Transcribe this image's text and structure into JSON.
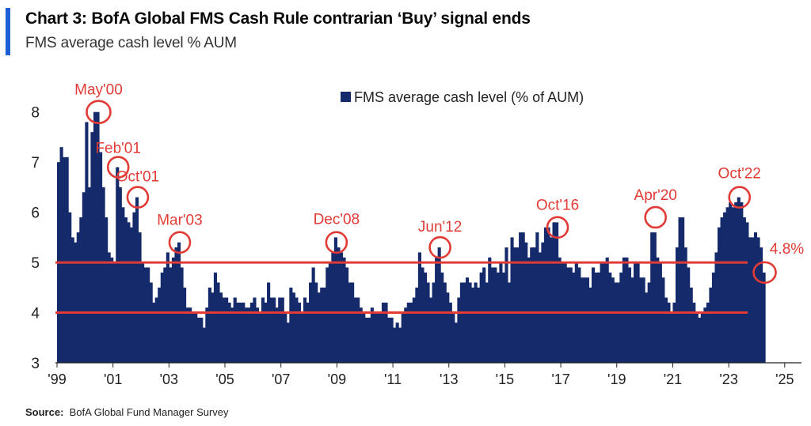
{
  "header": {
    "title": "Chart 3: BofA Global FMS Cash Rule contrarian ‘Buy’ signal ends",
    "subtitle": "FMS average cash level % AUM"
  },
  "footer": {
    "source_label": "Source:",
    "source_text": "BofA Global Fund Manager Survey"
  },
  "colors": {
    "bar": "#152a6b",
    "threshold": "#e23b35",
    "annotation": "#e23b35",
    "accent": "#1c5fd6"
  },
  "chart_data": {
    "type": "bar",
    "title": "",
    "xlabel": "",
    "ylabel": "",
    "ylim": [
      3,
      8.5
    ],
    "yticks": [
      3,
      4,
      5,
      6,
      7,
      8
    ],
    "xlim": [
      1999.0,
      2025.6
    ],
    "xticks": [
      {
        "value": 1999,
        "label": "'99"
      },
      {
        "value": 2001,
        "label": "'01"
      },
      {
        "value": 2003,
        "label": "'03"
      },
      {
        "value": 2005,
        "label": "'05"
      },
      {
        "value": 2007,
        "label": "'07"
      },
      {
        "value": 2009,
        "label": "'09"
      },
      {
        "value": 2011,
        "label": "'11"
      },
      {
        "value": 2013,
        "label": "'13"
      },
      {
        "value": 2015,
        "label": "'15"
      },
      {
        "value": 2017,
        "label": "'17"
      },
      {
        "value": 2019,
        "label": "'19"
      },
      {
        "value": 2021,
        "label": "'21"
      },
      {
        "value": 2023,
        "label": "'23"
      },
      {
        "value": 2025,
        "label": "'25"
      }
    ],
    "legend": {
      "label": "FMS average cash level (% of AUM)",
      "position": "top-center"
    },
    "series": [
      {
        "name": "FMS average cash level (% of AUM)",
        "points": [
          [
            1999.0,
            7.0
          ],
          [
            1999.1,
            7.3
          ],
          [
            1999.2,
            7.1
          ],
          [
            1999.3,
            7.1
          ],
          [
            1999.4,
            6.0
          ],
          [
            1999.5,
            5.5
          ],
          [
            1999.6,
            5.4
          ],
          [
            1999.7,
            5.6
          ],
          [
            1999.8,
            5.9
          ],
          [
            1999.9,
            6.4
          ],
          [
            2000.0,
            7.8
          ],
          [
            2000.1,
            6.5
          ],
          [
            2000.2,
            7.6
          ],
          [
            2000.3,
            8.0
          ],
          [
            2000.4,
            8.0
          ],
          [
            2000.5,
            7.2
          ],
          [
            2000.6,
            6.5
          ],
          [
            2000.7,
            5.9
          ],
          [
            2000.8,
            5.2
          ],
          [
            2000.9,
            5.1
          ],
          [
            2001.0,
            5.0
          ],
          [
            2001.1,
            6.9
          ],
          [
            2001.2,
            6.5
          ],
          [
            2001.3,
            6.1
          ],
          [
            2001.4,
            5.9
          ],
          [
            2001.5,
            5.8
          ],
          [
            2001.6,
            5.7
          ],
          [
            2001.7,
            6.0
          ],
          [
            2001.8,
            6.3
          ],
          [
            2001.9,
            5.6
          ],
          [
            2002.0,
            5.0
          ],
          [
            2002.1,
            4.9
          ],
          [
            2002.2,
            4.9
          ],
          [
            2002.3,
            4.6
          ],
          [
            2002.4,
            4.2
          ],
          [
            2002.5,
            4.3
          ],
          [
            2002.6,
            4.5
          ],
          [
            2002.7,
            4.8
          ],
          [
            2002.8,
            4.9
          ],
          [
            2002.9,
            5.2
          ],
          [
            2003.0,
            4.9
          ],
          [
            2003.1,
            5.1
          ],
          [
            2003.2,
            5.3
          ],
          [
            2003.3,
            5.4
          ],
          [
            2003.4,
            4.9
          ],
          [
            2003.5,
            4.5
          ],
          [
            2003.6,
            4.1
          ],
          [
            2003.7,
            4.1
          ],
          [
            2003.8,
            4.0
          ],
          [
            2003.9,
            4.0
          ],
          [
            2004.0,
            3.9
          ],
          [
            2004.1,
            3.9
          ],
          [
            2004.2,
            3.7
          ],
          [
            2004.3,
            4.1
          ],
          [
            2004.4,
            4.5
          ],
          [
            2004.5,
            4.4
          ],
          [
            2004.6,
            4.8
          ],
          [
            2004.7,
            4.6
          ],
          [
            2004.8,
            4.4
          ],
          [
            2004.9,
            4.3
          ],
          [
            2005.0,
            4.3
          ],
          [
            2005.1,
            4.2
          ],
          [
            2005.2,
            4.1
          ],
          [
            2005.3,
            4.3
          ],
          [
            2005.4,
            4.2
          ],
          [
            2005.5,
            4.2
          ],
          [
            2005.6,
            4.2
          ],
          [
            2005.7,
            4.1
          ],
          [
            2005.8,
            4.1
          ],
          [
            2005.9,
            4.2
          ],
          [
            2006.0,
            4.3
          ],
          [
            2006.1,
            4.1
          ],
          [
            2006.2,
            4.0
          ],
          [
            2006.3,
            4.3
          ],
          [
            2006.4,
            4.2
          ],
          [
            2006.5,
            4.6
          ],
          [
            2006.6,
            4.3
          ],
          [
            2006.7,
            4.3
          ],
          [
            2006.8,
            4.1
          ],
          [
            2006.9,
            4.3
          ],
          [
            2007.0,
            4.3
          ],
          [
            2007.1,
            4.0
          ],
          [
            2007.2,
            3.8
          ],
          [
            2007.3,
            4.5
          ],
          [
            2007.4,
            4.4
          ],
          [
            2007.5,
            4.3
          ],
          [
            2007.6,
            4.2
          ],
          [
            2007.7,
            4.0
          ],
          [
            2007.8,
            4.3
          ],
          [
            2007.9,
            4.2
          ],
          [
            2008.0,
            4.6
          ],
          [
            2008.1,
            4.9
          ],
          [
            2008.2,
            4.6
          ],
          [
            2008.3,
            4.4
          ],
          [
            2008.4,
            4.5
          ],
          [
            2008.5,
            4.5
          ],
          [
            2008.6,
            4.9
          ],
          [
            2008.7,
            5.0
          ],
          [
            2008.8,
            5.2
          ],
          [
            2008.9,
            5.5
          ],
          [
            2009.0,
            5.3
          ],
          [
            2009.1,
            5.2
          ],
          [
            2009.2,
            5.1
          ],
          [
            2009.3,
            4.9
          ],
          [
            2009.4,
            4.6
          ],
          [
            2009.5,
            4.6
          ],
          [
            2009.6,
            4.3
          ],
          [
            2009.7,
            4.3
          ],
          [
            2009.8,
            4.1
          ],
          [
            2009.9,
            4.0
          ],
          [
            2010.0,
            3.9
          ],
          [
            2010.1,
            3.9
          ],
          [
            2010.2,
            4.1
          ],
          [
            2010.3,
            4.0
          ],
          [
            2010.4,
            4.0
          ],
          [
            2010.5,
            4.0
          ],
          [
            2010.6,
            4.2
          ],
          [
            2010.7,
            4.2
          ],
          [
            2010.8,
            3.9
          ],
          [
            2010.9,
            3.9
          ],
          [
            2011.0,
            3.7
          ],
          [
            2011.1,
            3.8
          ],
          [
            2011.2,
            3.7
          ],
          [
            2011.3,
            4.0
          ],
          [
            2011.4,
            4.1
          ],
          [
            2011.5,
            4.2
          ],
          [
            2011.6,
            4.2
          ],
          [
            2011.7,
            4.3
          ],
          [
            2011.8,
            4.5
          ],
          [
            2011.9,
            5.2
          ],
          [
            2012.0,
            4.9
          ],
          [
            2012.1,
            4.8
          ],
          [
            2012.2,
            4.6
          ],
          [
            2012.3,
            4.3
          ],
          [
            2012.4,
            4.6
          ],
          [
            2012.5,
            5.1
          ],
          [
            2012.6,
            5.3
          ],
          [
            2012.7,
            4.8
          ],
          [
            2012.8,
            4.6
          ],
          [
            2012.9,
            4.4
          ],
          [
            2013.0,
            4.2
          ],
          [
            2013.1,
            4.0
          ],
          [
            2013.2,
            3.8
          ],
          [
            2013.3,
            4.3
          ],
          [
            2013.4,
            4.6
          ],
          [
            2013.5,
            4.6
          ],
          [
            2013.6,
            4.7
          ],
          [
            2013.7,
            4.6
          ],
          [
            2013.8,
            4.5
          ],
          [
            2013.9,
            4.6
          ],
          [
            2014.0,
            4.5
          ],
          [
            2014.1,
            4.8
          ],
          [
            2014.2,
            4.9
          ],
          [
            2014.3,
            4.6
          ],
          [
            2014.4,
            5.1
          ],
          [
            2014.5,
            4.9
          ],
          [
            2014.6,
            4.9
          ],
          [
            2014.7,
            4.8
          ],
          [
            2014.8,
            5.0
          ],
          [
            2014.9,
            4.8
          ],
          [
            2015.0,
            5.3
          ],
          [
            2015.1,
            4.6
          ],
          [
            2015.2,
            5.5
          ],
          [
            2015.3,
            5.3
          ],
          [
            2015.4,
            5.3
          ],
          [
            2015.5,
            5.6
          ],
          [
            2015.6,
            5.6
          ],
          [
            2015.7,
            5.4
          ],
          [
            2015.8,
            5.1
          ],
          [
            2015.9,
            5.3
          ],
          [
            2016.0,
            5.3
          ],
          [
            2016.1,
            5.6
          ],
          [
            2016.2,
            5.2
          ],
          [
            2016.3,
            5.4
          ],
          [
            2016.4,
            5.7
          ],
          [
            2016.5,
            5.7
          ],
          [
            2016.6,
            5.5
          ],
          [
            2016.7,
            5.8
          ],
          [
            2016.8,
            5.8
          ],
          [
            2016.9,
            5.1
          ],
          [
            2017.0,
            5.0
          ],
          [
            2017.1,
            5.0
          ],
          [
            2017.2,
            4.9
          ],
          [
            2017.3,
            4.9
          ],
          [
            2017.4,
            4.8
          ],
          [
            2017.5,
            5.0
          ],
          [
            2017.6,
            4.9
          ],
          [
            2017.7,
            4.7
          ],
          [
            2017.8,
            4.7
          ],
          [
            2017.9,
            4.7
          ],
          [
            2018.0,
            4.5
          ],
          [
            2018.1,
            4.9
          ],
          [
            2018.2,
            4.8
          ],
          [
            2018.3,
            4.8
          ],
          [
            2018.4,
            5.0
          ],
          [
            2018.5,
            5.0
          ],
          [
            2018.6,
            5.1
          ],
          [
            2018.7,
            4.8
          ],
          [
            2018.8,
            4.7
          ],
          [
            2018.9,
            4.6
          ],
          [
            2019.0,
            4.6
          ],
          [
            2019.1,
            4.8
          ],
          [
            2019.2,
            5.1
          ],
          [
            2019.3,
            5.1
          ],
          [
            2019.4,
            4.9
          ],
          [
            2019.5,
            4.7
          ],
          [
            2019.6,
            5.0
          ],
          [
            2019.7,
            5.0
          ],
          [
            2019.8,
            4.7
          ],
          [
            2019.9,
            4.7
          ],
          [
            2020.0,
            4.4
          ],
          [
            2020.1,
            4.6
          ],
          [
            2020.2,
            5.6
          ],
          [
            2020.3,
            5.6
          ],
          [
            2020.4,
            5.1
          ],
          [
            2020.5,
            5.0
          ],
          [
            2020.6,
            4.7
          ],
          [
            2020.7,
            4.3
          ],
          [
            2020.8,
            4.2
          ],
          [
            2020.9,
            4.0
          ],
          [
            2021.0,
            4.2
          ],
          [
            2021.1,
            5.3
          ],
          [
            2021.2,
            5.9
          ],
          [
            2021.3,
            5.9
          ],
          [
            2021.4,
            5.3
          ],
          [
            2021.5,
            4.9
          ],
          [
            2021.6,
            4.5
          ],
          [
            2021.7,
            4.2
          ],
          [
            2021.8,
            4.0
          ],
          [
            2021.9,
            3.9
          ],
          [
            2022.0,
            4.0
          ],
          [
            2022.1,
            4.1
          ],
          [
            2022.2,
            4.2
          ],
          [
            2022.3,
            4.5
          ],
          [
            2022.4,
            4.8
          ],
          [
            2022.5,
            5.2
          ],
          [
            2022.6,
            5.7
          ],
          [
            2022.7,
            5.9
          ],
          [
            2022.8,
            6.0
          ],
          [
            2022.9,
            6.1
          ],
          [
            2023.0,
            6.2
          ],
          [
            2023.1,
            6.1
          ],
          [
            2023.2,
            6.2
          ],
          [
            2023.3,
            6.3
          ],
          [
            2023.4,
            6.2
          ],
          [
            2023.5,
            5.9
          ],
          [
            2023.6,
            5.8
          ],
          [
            2023.7,
            5.5
          ],
          [
            2023.8,
            5.5
          ],
          [
            2023.9,
            5.6
          ],
          [
            2024.0,
            5.5
          ],
          [
            2024.1,
            5.3
          ],
          [
            2024.2,
            4.8
          ]
        ]
      }
    ],
    "thresholds": [
      5.0,
      4.0
    ],
    "annotations": [
      {
        "label": "May'00",
        "x": 2000.4,
        "y": 8.0
      },
      {
        "label": "Feb'01",
        "x": 2001.1,
        "y": 6.9
      },
      {
        "label": "Oct'01",
        "x": 2001.8,
        "y": 6.3
      },
      {
        "label": "Mar'03",
        "x": 2003.3,
        "y": 5.4
      },
      {
        "label": "Dec'08",
        "x": 2008.9,
        "y": 5.4
      },
      {
        "label": "Jun'12",
        "x": 2012.6,
        "y": 5.3
      },
      {
        "label": "Oct'16",
        "x": 2016.8,
        "y": 5.7
      },
      {
        "label": "Apr'20",
        "x": 2020.3,
        "y": 5.9
      },
      {
        "label": "Oct'22",
        "x": 2023.3,
        "y": 6.3
      },
      {
        "label": "4.8%",
        "x": 2024.2,
        "y": 4.8
      }
    ]
  }
}
